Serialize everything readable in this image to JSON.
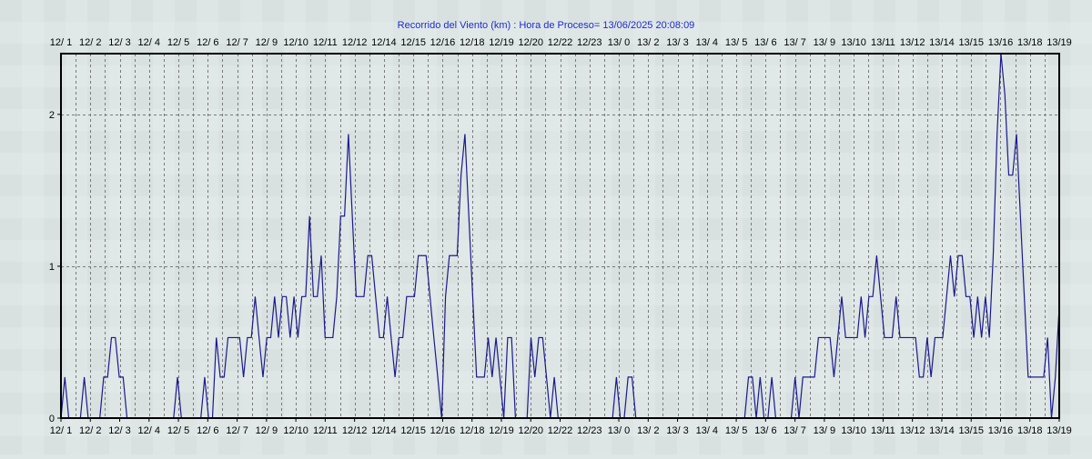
{
  "chart_data": {
    "type": "line",
    "title": "Recorrido del Viento (km) : Hora de Proceso= 13/06/2025 20:08:09",
    "xlabel": "",
    "ylabel": "",
    "ylim": [
      0,
      2.4
    ],
    "y_ticks": [
      0,
      1,
      2
    ],
    "grid": true,
    "legend": "none",
    "x_tick_labels": [
      "12/ 1",
      "12/ 2",
      "12/ 3",
      "12/ 4",
      "12/ 5",
      "12/ 6",
      "12/ 7",
      "12/ 9",
      "12/10",
      "12/11",
      "12/12",
      "12/14",
      "12/15",
      "12/16",
      "12/18",
      "12/19",
      "12/20",
      "12/22",
      "12/23",
      "13/ 0",
      "13/ 2",
      "13/ 3",
      "13/ 4",
      "13/ 5",
      "13/ 6",
      "13/ 7",
      "13/ 9",
      "13/10",
      "13/11",
      "13/12",
      "13/14",
      "13/15",
      "13/16",
      "13/18",
      "13/19"
    ],
    "series": [
      {
        "color": "#1a1a8c",
        "values": [
          0,
          0.27,
          0,
          0,
          0,
          0,
          0.27,
          0,
          0,
          0,
          0,
          0.27,
          0.27,
          0.53,
          0.53,
          0.27,
          0.27,
          0,
          0,
          0,
          0,
          0,
          0,
          0,
          0,
          0,
          0,
          0,
          0,
          0,
          0.27,
          0,
          0,
          0,
          0,
          0,
          0,
          0.27,
          0,
          0,
          0.53,
          0.27,
          0.27,
          0.53,
          0.53,
          0.53,
          0.53,
          0.27,
          0.53,
          0.53,
          0.8,
          0.53,
          0.27,
          0.53,
          0.53,
          0.8,
          0.53,
          0.8,
          0.8,
          0.53,
          0.8,
          0.53,
          0.8,
          0.8,
          1.33,
          0.8,
          0.8,
          1.07,
          0.53,
          0.53,
          0.53,
          0.8,
          1.33,
          1.33,
          1.87,
          1.33,
          0.8,
          0.8,
          0.8,
          1.07,
          1.07,
          0.8,
          0.53,
          0.53,
          0.8,
          0.53,
          0.27,
          0.53,
          0.53,
          0.8,
          0.8,
          0.8,
          1.07,
          1.07,
          1.07,
          0.8,
          0.53,
          0.27,
          0,
          0.8,
          1.07,
          1.07,
          1.07,
          1.6,
          1.87,
          1.33,
          0.8,
          0.27,
          0.27,
          0.27,
          0.53,
          0.27,
          0.53,
          0.27,
          0,
          0.53,
          0.53,
          0,
          0,
          0,
          0,
          0.53,
          0.27,
          0.53,
          0.53,
          0.27,
          0,
          0.27,
          0,
          0,
          0,
          0,
          0,
          0,
          0,
          0,
          0,
          0,
          0,
          0,
          0,
          0,
          0,
          0.27,
          0,
          0,
          0.27,
          0.27,
          0,
          0,
          0,
          0,
          0,
          0,
          0,
          0,
          0,
          0,
          0,
          0,
          0,
          0,
          0,
          0,
          0,
          0,
          0,
          0,
          0,
          0,
          0,
          0,
          0,
          0,
          0,
          0,
          0,
          0.27,
          0.27,
          0,
          0.27,
          0,
          0,
          0.27,
          0,
          0,
          0,
          0,
          0,
          0.27,
          0,
          0.27,
          0.27,
          0.27,
          0.27,
          0.53,
          0.53,
          0.53,
          0.53,
          0.27,
          0.53,
          0.8,
          0.53,
          0.53,
          0.53,
          0.53,
          0.8,
          0.53,
          0.8,
          0.8,
          1.07,
          0.8,
          0.53,
          0.53,
          0.53,
          0.8,
          0.53,
          0.53,
          0.53,
          0.53,
          0.53,
          0.27,
          0.27,
          0.53,
          0.27,
          0.53,
          0.53,
          0.53,
          0.8,
          1.07,
          0.8,
          1.07,
          1.07,
          0.8,
          0.8,
          0.53,
          0.8,
          0.53,
          0.8,
          0.53,
          1.07,
          1.87,
          2.4,
          2.13,
          1.6,
          1.6,
          1.87,
          1.33,
          0.8,
          0.27,
          0.27,
          0.27,
          0.27,
          0.27,
          0.53,
          0,
          0.27,
          0.73
        ]
      }
    ]
  }
}
